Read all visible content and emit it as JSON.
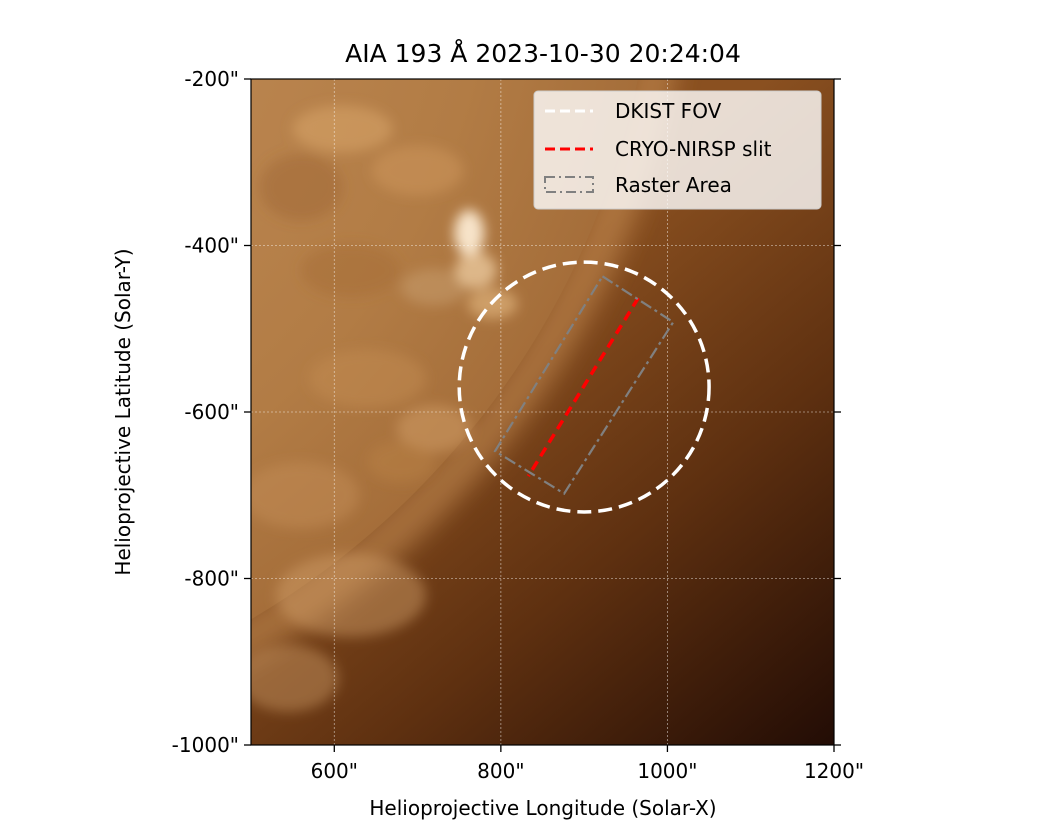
{
  "chart_data": {
    "type": "image",
    "title": "AIA 193 Å 2023-10-30 20:24:04",
    "xlabel": "Helioprojective Longitude (Solar-X)",
    "ylabel": "Helioprojective Latitude (Solar-Y)",
    "xlim": [
      500,
      1200
    ],
    "ylim": [
      -1000,
      -200
    ],
    "x_ticks": [
      {
        "value": 600,
        "label": "600\""
      },
      {
        "value": 800,
        "label": "800\""
      },
      {
        "value": 1000,
        "label": "1000\""
      },
      {
        "value": 1200,
        "label": "1200\""
      }
    ],
    "y_ticks": [
      {
        "value": -200,
        "label": "-200\""
      },
      {
        "value": -400,
        "label": "-400\""
      },
      {
        "value": -600,
        "label": "-600\""
      },
      {
        "value": -800,
        "label": "-800\""
      },
      {
        "value": -1000,
        "label": "-1000\""
      }
    ],
    "grid": true,
    "colormap": "sdoaia193",
    "limb": {
      "center": [
        0,
        0
      ],
      "radius_arcsec": 985,
      "disk_color": "#bf8a50",
      "corona_color": "#5a2e08",
      "far_corona_color": "#1c0803"
    },
    "overlays": [
      {
        "name": "DKIST FOV",
        "type": "circle",
        "center": [
          900,
          -570
        ],
        "radius": 150,
        "color": "#ffffff",
        "linestyle": "dashed"
      },
      {
        "name": "CRYO-NIRSP slit",
        "type": "line",
        "points": [
          [
            965,
            -463
          ],
          [
            833,
            -677
          ]
        ],
        "color": "#ff0000",
        "linestyle": "dashed"
      },
      {
        "name": "Raster Area",
        "type": "polygon",
        "points": [
          [
            922,
            -437
          ],
          [
            1007,
            -492
          ],
          [
            876,
            -698
          ],
          [
            793,
            -647
          ]
        ],
        "color": "#808080",
        "linestyle": "dashdot"
      }
    ],
    "legend": {
      "position": "upper-right",
      "entries": [
        {
          "label": "DKIST FOV",
          "color": "#ffffff",
          "linestyle": "dashed"
        },
        {
          "label": "CRYO-NIRSP slit",
          "color": "#ff0000",
          "linestyle": "dashed"
        },
        {
          "label": "Raster Area",
          "color": "#808080",
          "linestyle": "dashdot"
        }
      ]
    }
  }
}
